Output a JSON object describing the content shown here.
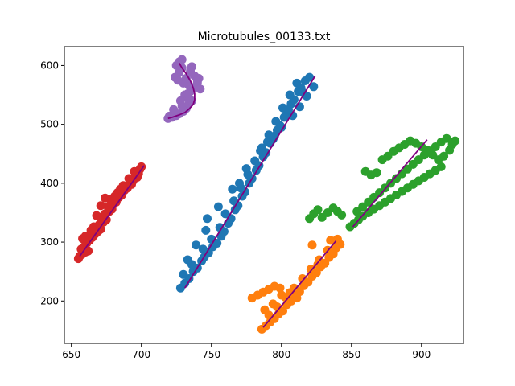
{
  "chart_data": {
    "type": "scatter",
    "title": "Microtubules_00133.txt",
    "xlabel": "",
    "ylabel": "",
    "xlim": [
      645,
      930
    ],
    "ylim": [
      128,
      632
    ],
    "xticks": [
      650,
      700,
      750,
      800,
      850,
      900
    ],
    "yticks": [
      200,
      300,
      400,
      500,
      600
    ],
    "grid": false,
    "fit_color": "#800080",
    "series": [
      {
        "color": "#d62728",
        "points": [
          [
            655,
            272
          ],
          [
            656,
            276
          ],
          [
            658,
            280
          ],
          [
            660,
            283
          ],
          [
            657,
            288
          ],
          [
            662,
            285
          ],
          [
            659,
            292
          ],
          [
            661,
            298
          ],
          [
            663,
            303
          ],
          [
            658,
            306
          ],
          [
            660,
            310
          ],
          [
            665,
            308
          ],
          [
            667,
            314
          ],
          [
            669,
            318
          ],
          [
            671,
            322
          ],
          [
            666,
            326
          ],
          [
            670,
            330
          ],
          [
            673,
            334
          ],
          [
            675,
            338
          ],
          [
            672,
            343
          ],
          [
            674,
            348
          ],
          [
            677,
            352
          ],
          [
            679,
            356
          ],
          [
            676,
            360
          ],
          [
            680,
            364
          ],
          [
            682,
            368
          ],
          [
            678,
            372
          ],
          [
            684,
            376
          ],
          [
            686,
            380
          ],
          [
            683,
            384
          ],
          [
            688,
            388
          ],
          [
            690,
            392
          ],
          [
            687,
            396
          ],
          [
            692,
            400
          ],
          [
            694,
            404
          ],
          [
            691,
            408
          ],
          [
            696,
            412
          ],
          [
            698,
            416
          ],
          [
            695,
            420
          ],
          [
            699,
            424
          ],
          [
            700,
            428
          ],
          [
            685,
            390
          ],
          [
            681,
            378
          ],
          [
            668,
            345
          ],
          [
            664,
            320
          ],
          [
            693,
            398
          ],
          [
            697,
            410
          ],
          [
            689,
            395
          ],
          [
            674,
            375
          ],
          [
            671,
            362
          ]
        ],
        "fit": [
          [
            656,
            276
          ],
          [
            702,
            430
          ]
        ]
      },
      {
        "color": "#9467bd",
        "points": [
          [
            719,
            510
          ],
          [
            722,
            512
          ],
          [
            725,
            515
          ],
          [
            727,
            518
          ],
          [
            730,
            522
          ],
          [
            732,
            527
          ],
          [
            729,
            531
          ],
          [
            734,
            535
          ],
          [
            736,
            540
          ],
          [
            733,
            545
          ],
          [
            731,
            550
          ],
          [
            735,
            556
          ],
          [
            737,
            561
          ],
          [
            734,
            566
          ],
          [
            730,
            570
          ],
          [
            726,
            575
          ],
          [
            732,
            578
          ],
          [
            738,
            582
          ],
          [
            741,
            578
          ],
          [
            740,
            571
          ],
          [
            739,
            564
          ],
          [
            724,
            580
          ],
          [
            727,
            588
          ],
          [
            729,
            596
          ],
          [
            725,
            600
          ],
          [
            727,
            606
          ],
          [
            729,
            610
          ],
          [
            735,
            590
          ],
          [
            736,
            598
          ],
          [
            723,
            525
          ],
          [
            728,
            540
          ],
          [
            740,
            575
          ],
          [
            742,
            560
          ],
          [
            720,
            514
          ],
          [
            733,
            552
          ]
        ],
        "fit": [
          [
            719,
            510
          ],
          [
            722,
            512
          ],
          [
            727,
            516
          ],
          [
            731,
            520
          ],
          [
            734,
            526
          ],
          [
            737,
            534
          ],
          [
            738,
            542
          ],
          [
            738,
            552
          ],
          [
            737,
            562
          ],
          [
            735,
            574
          ],
          [
            732,
            586
          ],
          [
            729,
            596
          ],
          [
            727,
            604
          ]
        ]
      },
      {
        "color": "#1f77b4",
        "points": [
          [
            728,
            222
          ],
          [
            731,
            230
          ],
          [
            734,
            238
          ],
          [
            730,
            245
          ],
          [
            737,
            250
          ],
          [
            740,
            256
          ],
          [
            736,
            262
          ],
          [
            743,
            268
          ],
          [
            745,
            275
          ],
          [
            748,
            282
          ],
          [
            744,
            288
          ],
          [
            751,
            292
          ],
          [
            754,
            298
          ],
          [
            750,
            305
          ],
          [
            757,
            310
          ],
          [
            759,
            318
          ],
          [
            756,
            325
          ],
          [
            762,
            332
          ],
          [
            764,
            340
          ],
          [
            760,
            348
          ],
          [
            767,
            355
          ],
          [
            769,
            362
          ],
          [
            766,
            370
          ],
          [
            772,
            378
          ],
          [
            774,
            385
          ],
          [
            771,
            392
          ],
          [
            777,
            400
          ],
          [
            779,
            408
          ],
          [
            776,
            415
          ],
          [
            782,
            422
          ],
          [
            784,
            430
          ],
          [
            781,
            438
          ],
          [
            787,
            445
          ],
          [
            789,
            452
          ],
          [
            786,
            460
          ],
          [
            792,
            468
          ],
          [
            794,
            475
          ],
          [
            791,
            482
          ],
          [
            797,
            490
          ],
          [
            799,
            498
          ],
          [
            796,
            505
          ],
          [
            802,
            512
          ],
          [
            804,
            520
          ],
          [
            801,
            528
          ],
          [
            807,
            535
          ],
          [
            809,
            542
          ],
          [
            806,
            550
          ],
          [
            812,
            556
          ],
          [
            814,
            562
          ],
          [
            811,
            570
          ],
          [
            817,
            574
          ],
          [
            820,
            580
          ],
          [
            823,
            564
          ],
          [
            818,
            548
          ],
          [
            813,
            530
          ],
          [
            808,
            515
          ],
          [
            800,
            495
          ],
          [
            795,
            480
          ],
          [
            785,
            455
          ],
          [
            775,
            425
          ],
          [
            765,
            390
          ],
          [
            755,
            360
          ],
          [
            746,
            320
          ],
          [
            739,
            295
          ],
          [
            733,
            270
          ],
          [
            747,
            340
          ],
          [
            770,
            400
          ],
          [
            790,
            470
          ],
          [
            805,
            525
          ],
          [
            815,
            555
          ]
        ],
        "fit": [
          [
            731,
            222
          ],
          [
            824,
            582
          ]
        ]
      },
      {
        "color": "#ff7f0e",
        "points": [
          [
            786,
            152
          ],
          [
            789,
            158
          ],
          [
            792,
            164
          ],
          [
            795,
            170
          ],
          [
            791,
            176
          ],
          [
            798,
            178
          ],
          [
            801,
            183
          ],
          [
            797,
            190
          ],
          [
            804,
            194
          ],
          [
            807,
            200
          ],
          [
            803,
            206
          ],
          [
            810,
            210
          ],
          [
            813,
            216
          ],
          [
            809,
            222
          ],
          [
            816,
            226
          ],
          [
            819,
            232
          ],
          [
            815,
            238
          ],
          [
            822,
            242
          ],
          [
            825,
            248
          ],
          [
            821,
            254
          ],
          [
            828,
            258
          ],
          [
            831,
            264
          ],
          [
            827,
            270
          ],
          [
            834,
            274
          ],
          [
            837,
            280
          ],
          [
            833,
            286
          ],
          [
            839,
            290
          ],
          [
            842,
            296
          ],
          [
            838,
            302
          ],
          [
            840,
            305
          ],
          [
            835,
            303
          ],
          [
            822,
            295
          ],
          [
            779,
            205
          ],
          [
            783,
            210
          ],
          [
            787,
            215
          ],
          [
            791,
            220
          ],
          [
            795,
            225
          ],
          [
            799,
            222
          ],
          [
            800,
            210
          ],
          [
            794,
            195
          ],
          [
            788,
            185
          ],
          [
            806,
            214
          ],
          [
            811,
            205
          ],
          [
            817,
            230
          ],
          [
            826,
            262
          ]
        ],
        "fit": [
          [
            787,
            155
          ],
          [
            839,
            302
          ]
        ]
      },
      {
        "color": "#2ca02c",
        "points": [
          [
            820,
            340
          ],
          [
            823,
            348
          ],
          [
            826,
            355
          ],
          [
            829,
            342
          ],
          [
            833,
            350
          ],
          [
            837,
            358
          ],
          [
            840,
            352
          ],
          [
            843,
            346
          ],
          [
            849,
            326
          ],
          [
            852,
            332
          ],
          [
            855,
            338
          ],
          [
            858,
            344
          ],
          [
            862,
            350
          ],
          [
            866,
            356
          ],
          [
            870,
            362
          ],
          [
            874,
            368
          ],
          [
            878,
            374
          ],
          [
            882,
            380
          ],
          [
            886,
            386
          ],
          [
            890,
            392
          ],
          [
            894,
            398
          ],
          [
            898,
            404
          ],
          [
            902,
            410
          ],
          [
            906,
            416
          ],
          [
            910,
            422
          ],
          [
            914,
            428
          ],
          [
            912,
            440
          ],
          [
            908,
            448
          ],
          [
            904,
            456
          ],
          [
            900,
            462
          ],
          [
            896,
            468
          ],
          [
            892,
            472
          ],
          [
            888,
            466
          ],
          [
            884,
            460
          ],
          [
            880,
            454
          ],
          [
            876,
            446
          ],
          [
            872,
            440
          ],
          [
            868,
            418
          ],
          [
            864,
            414
          ],
          [
            860,
            420
          ],
          [
            916,
            446
          ],
          [
            920,
            456
          ],
          [
            922,
            466
          ],
          [
            924,
            472
          ],
          [
            918,
            476
          ],
          [
            914,
            470
          ],
          [
            910,
            462
          ],
          [
            906,
            455
          ],
          [
            902,
            448
          ],
          [
            898,
            440
          ],
          [
            894,
            432
          ],
          [
            890,
            424
          ],
          [
            886,
            416
          ],
          [
            882,
            408
          ],
          [
            878,
            400
          ],
          [
            874,
            392
          ],
          [
            870,
            384
          ],
          [
            866,
            376
          ],
          [
            862,
            368
          ],
          [
            858,
            360
          ],
          [
            854,
            352
          ]
        ],
        "fit": [
          [
            851,
            326
          ],
          [
            904,
            474
          ]
        ]
      }
    ]
  }
}
